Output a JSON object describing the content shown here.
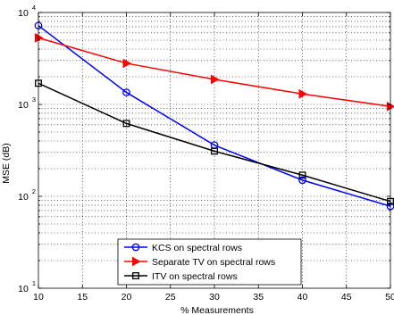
{
  "chart_data": {
    "type": "line",
    "title": "",
    "xlabel": "% Measurements",
    "ylabel": "MSE (dB)",
    "xlim": [
      10,
      50
    ],
    "ylim": [
      10,
      10000
    ],
    "yscale": "log",
    "grid": true,
    "legend_position": "bottom-center",
    "x_ticks": [
      10,
      15,
      20,
      25,
      30,
      35,
      40,
      45,
      50
    ],
    "x_tick_labels": [
      "10",
      "15",
      "20",
      "25",
      "30",
      "35",
      "40",
      "45",
      "50"
    ],
    "y_ticks": [
      10,
      100,
      1000,
      10000
    ],
    "y_tick_labels": [
      {
        "base": "10",
        "exp": "1"
      },
      {
        "base": "10",
        "exp": "2"
      },
      {
        "base": "10",
        "exp": "3"
      },
      {
        "base": "10",
        "exp": "4"
      }
    ],
    "series": [
      {
        "name": "KCS on spectral rows",
        "color": "#0000ff",
        "marker": "circle",
        "x": [
          10,
          20,
          30,
          40,
          50
        ],
        "y": [
          7200,
          1350,
          360,
          150,
          78
        ]
      },
      {
        "name": "Separate TV on spectral rows",
        "color": "#ff0000",
        "marker": "triangle-right",
        "x": [
          10,
          20,
          30,
          40,
          50
        ],
        "y": [
          5300,
          2800,
          1870,
          1300,
          950
        ]
      },
      {
        "name": "ITV on spectral rows",
        "color": "#000000",
        "marker": "square",
        "x": [
          10,
          20,
          30,
          40,
          50
        ],
        "y": [
          1700,
          620,
          310,
          170,
          88
        ]
      }
    ]
  }
}
